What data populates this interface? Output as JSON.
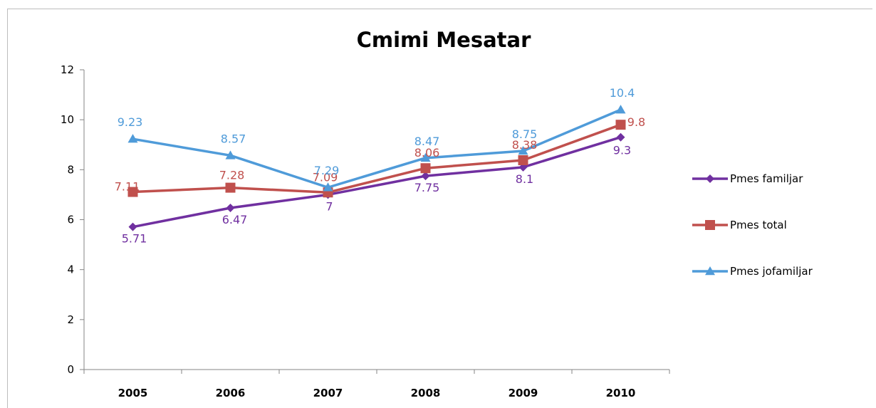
{
  "chart_data": {
    "type": "line",
    "title": "Cmimi Mesatar",
    "categories": [
      "2005",
      "2006",
      "2007",
      "2008",
      "2009",
      "2010"
    ],
    "ylim": [
      0,
      12
    ],
    "yticks": [
      "0",
      "2",
      "4",
      "6",
      "8",
      "10",
      "12"
    ],
    "grid": false,
    "legend_position": "right",
    "series": [
      {
        "name": "Pmes familjar",
        "values": [
          5.71,
          6.47,
          7,
          7.75,
          8.1,
          9.3
        ],
        "labels": [
          "5.71",
          "6.47",
          "7",
          "7.75",
          "8.1",
          "9.3"
        ],
        "color": "#7030a0",
        "marker": "diamond"
      },
      {
        "name": "Pmes total",
        "values": [
          7.11,
          7.28,
          7.09,
          8.06,
          8.38,
          9.8
        ],
        "labels": [
          "7.11",
          "7.28",
          "7.09",
          "8.06",
          "8.38",
          "9.8"
        ],
        "color": "#c0504d",
        "marker": "square"
      },
      {
        "name": "Pmes jofamiljar",
        "values": [
          9.23,
          8.57,
          7.29,
          8.47,
          8.75,
          10.4
        ],
        "labels": [
          "9.23",
          "8.57",
          "7.29",
          "8.47",
          "8.75",
          "10.4"
        ],
        "color": "#4f9bd9",
        "marker": "triangle"
      }
    ]
  }
}
